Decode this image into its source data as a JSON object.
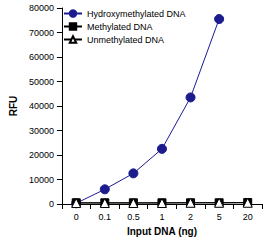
{
  "chart_data": {
    "type": "line",
    "x_label": "Input DNA (ng)",
    "y_label": "RFU",
    "categories": [
      "0",
      "0.1",
      "0.5",
      "1",
      "2",
      "5",
      "20"
    ],
    "series": [
      {
        "name": "Hydroxymethylated DNA",
        "color": "#1c1c8f",
        "marker": "circle",
        "values": [
          300,
          6000,
          12500,
          22500,
          43500,
          75500,
          null
        ]
      },
      {
        "name": "Methylated DNA",
        "color": "#000000",
        "marker": "square",
        "values": [
          500,
          500,
          500,
          500,
          500,
          500,
          600
        ]
      },
      {
        "name": "Unmethylated DNA",
        "color": "#000000",
        "marker": "triangle-open",
        "values": [
          400,
          400,
          400,
          400,
          500,
          500,
          500
        ]
      }
    ],
    "ylim": [
      0,
      80000
    ],
    "yticks": [
      0,
      10000,
      20000,
      30000,
      40000,
      50000,
      60000,
      70000,
      80000
    ],
    "grid": false,
    "legend": "top-left"
  }
}
